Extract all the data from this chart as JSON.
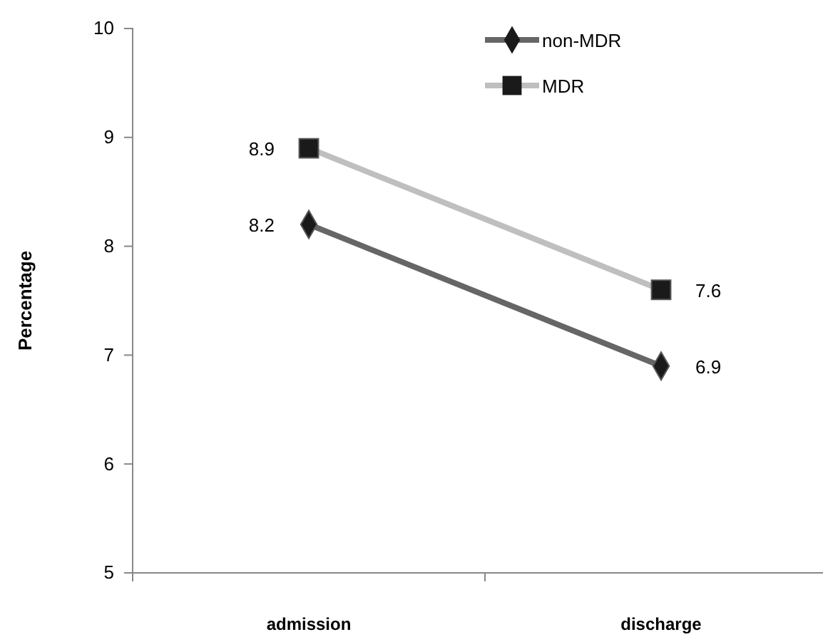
{
  "chart_data": {
    "type": "line",
    "ylabel": "Percentage",
    "categories": [
      "admission",
      "discharge"
    ],
    "series": [
      {
        "name": "non-MDR",
        "color": "#666666",
        "marker": "diamond",
        "values": [
          8.2,
          6.9
        ]
      },
      {
        "name": "MDR",
        "color": "#bfbfbf",
        "marker": "square",
        "values": [
          8.9,
          7.6
        ]
      }
    ],
    "ylim": [
      5,
      10
    ],
    "yticks": [
      5,
      6,
      7,
      8,
      9,
      10
    ],
    "grid": false,
    "legend": "top right",
    "data_labels": true
  }
}
